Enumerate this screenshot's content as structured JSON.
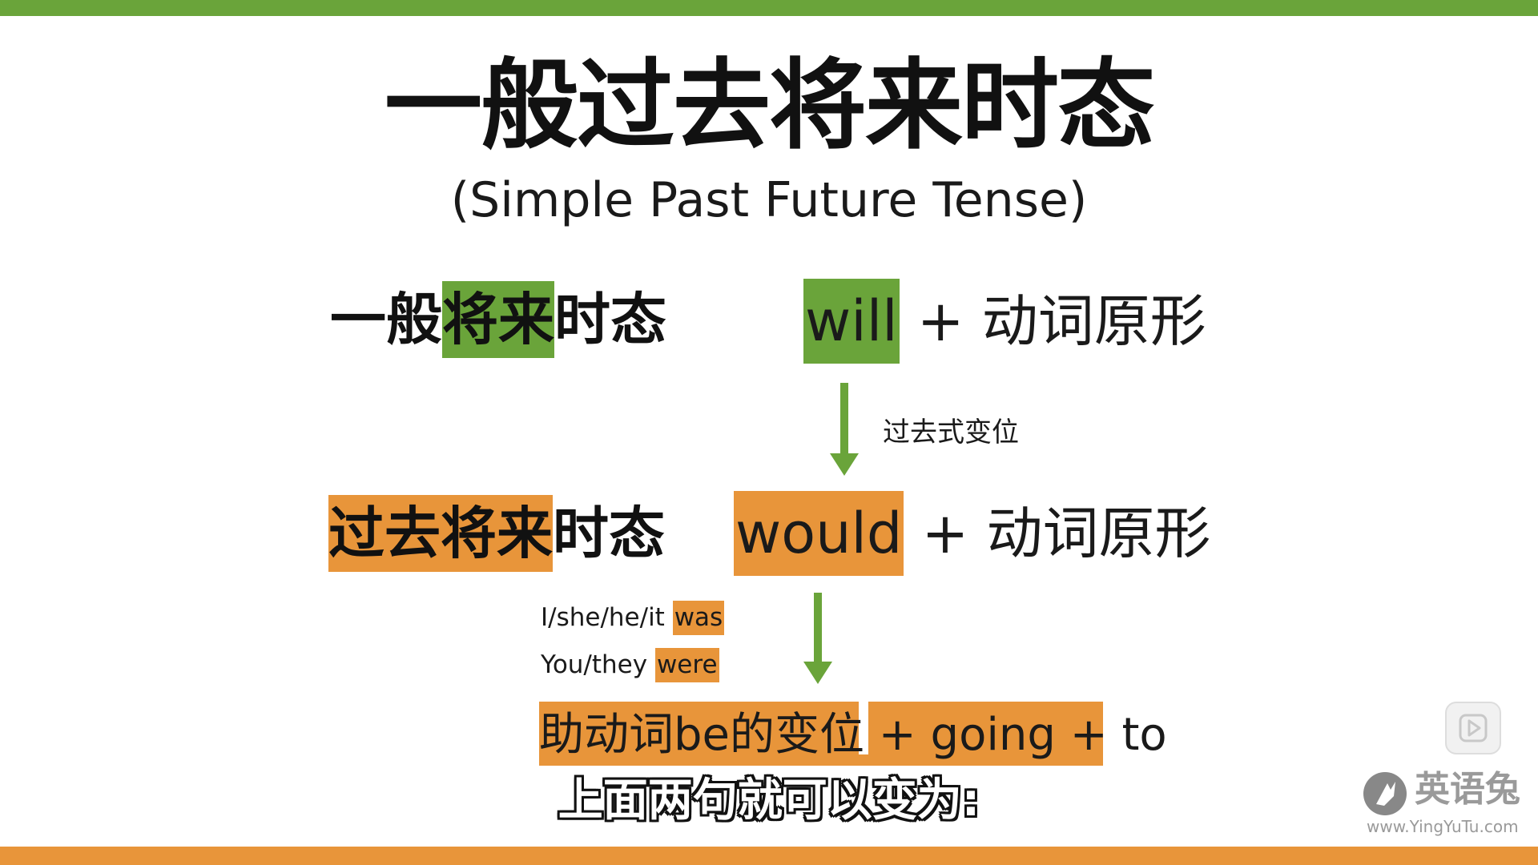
{
  "title": {
    "zh": "一般过去将来时态",
    "en": "(Simple Past Future Tense)"
  },
  "row1": {
    "label_pre": "一般",
    "label_hl": "将来",
    "label_post": "时态",
    "keyword": "will",
    "rest": " + 动词原形"
  },
  "arrow1_note": "过去式变位",
  "row2": {
    "label_hl": "过去将来",
    "label_post": "时态",
    "keyword": "would",
    "rest": " + 动词原形"
  },
  "be_forms": [
    {
      "subject": "I/she/he/it ",
      "verb": "was"
    },
    {
      "subject": "You/they ",
      "verb": "were"
    }
  ],
  "aux_formula": {
    "part1": "助动词be的变位",
    "part2": " + going + to"
  },
  "subtitle": "上面两句就可以变为:",
  "watermark": {
    "name": "英语兔",
    "url": "www.YingYuTu.com"
  },
  "colors": {
    "green": "#6aa43a",
    "orange": "#e8953a"
  }
}
